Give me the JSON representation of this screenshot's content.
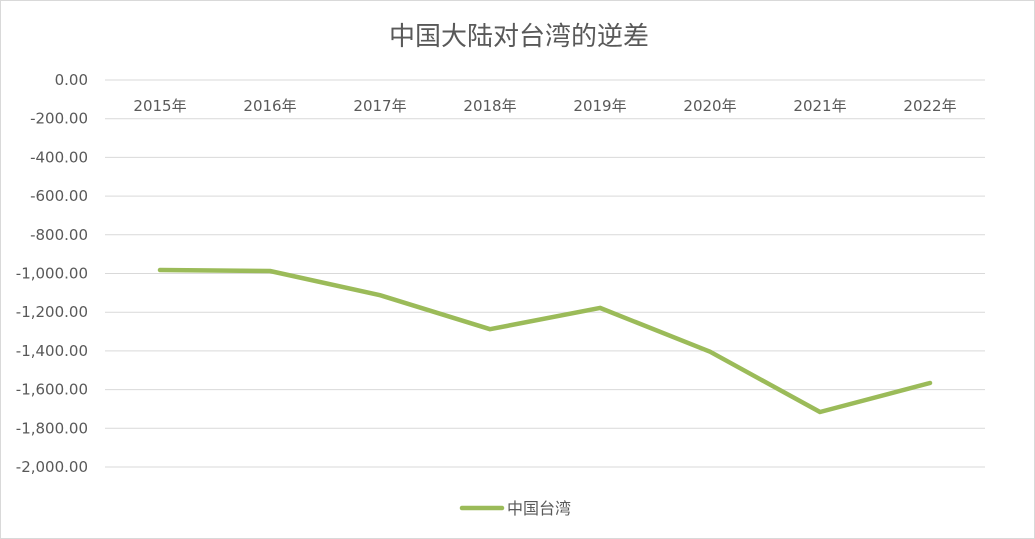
{
  "chart_data": {
    "type": "line",
    "title": "中国大陆对台湾的逆差",
    "categories": [
      "2015年",
      "2016年",
      "2017年",
      "2018年",
      "2019年",
      "2020年",
      "2021年",
      "2022年"
    ],
    "series": [
      {
        "name": "中国台湾",
        "values": [
          -982,
          -987,
          -1112,
          -1288,
          -1178,
          -1404,
          -1716,
          -1566
        ],
        "color": "#9bbb59"
      }
    ],
    "ylim": [
      -2000,
      0
    ],
    "ytick_labels": [
      "0.00",
      "-200.00",
      "-400.00",
      "-600.00",
      "-800.00",
      "-1,000.00",
      "-1,200.00",
      "-1,400.00",
      "-1,600.00",
      "-1,800.00",
      "-2,000.00"
    ],
    "xlabel": "",
    "ylabel": "",
    "grid": true,
    "legend": "bottom",
    "x_axis_position": "top"
  }
}
